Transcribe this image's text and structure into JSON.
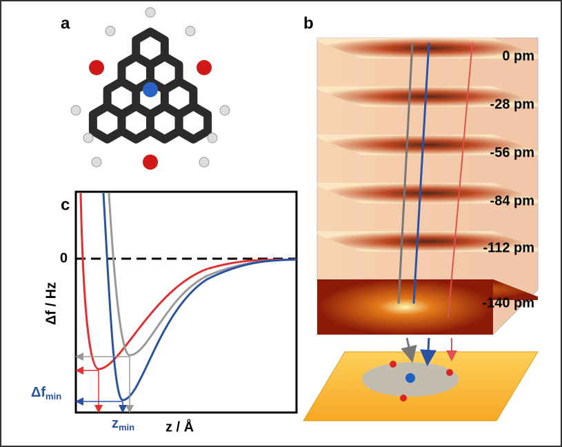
{
  "panels": {
    "a": {
      "label": "a"
    },
    "b": {
      "label": "b",
      "layers": [
        "0 pm",
        "-28 pm",
        "-56 pm",
        "-84 pm",
        "-112 pm",
        "-140 pm"
      ]
    },
    "c": {
      "label": "c",
      "y_axis_label": "Δf / Hz",
      "x_axis_label": "z / Å",
      "zero_label": "0",
      "df_min": {
        "text": "Δf",
        "subscript": "min"
      },
      "z_min": {
        "text": "z",
        "subscript": "min"
      }
    }
  }
}
